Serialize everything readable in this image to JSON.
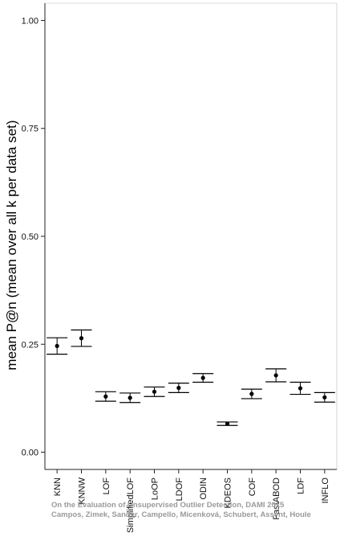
{
  "chart_data": {
    "type": "errorbar",
    "ylabel": "mean P@n (mean over all k per data set)",
    "xlabel": "",
    "ylim": [
      -0.04,
      1.04
    ],
    "yticks": [
      0.0,
      0.25,
      0.5,
      0.75,
      1.0
    ],
    "ytick_labels": [
      "0.00",
      "0.25",
      "0.50",
      "0.75",
      "1.00"
    ],
    "grid": false,
    "categories": [
      "KNN",
      "KNNW",
      "LOF",
      "SimplifiedLOF",
      "LoOP",
      "LDOF",
      "ODIN",
      "KDEOS",
      "COF",
      "FastABOD",
      "LDF",
      "INFLO"
    ],
    "points": [
      {
        "x": "KNN",
        "mean": 0.246,
        "lower": 0.227,
        "upper": 0.265
      },
      {
        "x": "KNNW",
        "mean": 0.264,
        "lower": 0.245,
        "upper": 0.283
      },
      {
        "x": "LOF",
        "mean": 0.129,
        "lower": 0.118,
        "upper": 0.14
      },
      {
        "x": "SimplifiedLOF",
        "mean": 0.126,
        "lower": 0.115,
        "upper": 0.137
      },
      {
        "x": "LoOP",
        "mean": 0.14,
        "lower": 0.129,
        "upper": 0.151
      },
      {
        "x": "LDOF",
        "mean": 0.149,
        "lower": 0.138,
        "upper": 0.16
      },
      {
        "x": "ODIN",
        "mean": 0.172,
        "lower": 0.162,
        "upper": 0.182
      },
      {
        "x": "KDEOS",
        "mean": 0.066,
        "lower": 0.062,
        "upper": 0.07
      },
      {
        "x": "COF",
        "mean": 0.135,
        "lower": 0.124,
        "upper": 0.146
      },
      {
        "x": "FastABOD",
        "mean": 0.178,
        "lower": 0.163,
        "upper": 0.193
      },
      {
        "x": "LDF",
        "mean": 0.148,
        "lower": 0.134,
        "upper": 0.162
      },
      {
        "x": "INFLO",
        "mean": 0.127,
        "lower": 0.116,
        "upper": 0.138
      }
    ]
  },
  "watermark": {
    "line1": "On the Evaluation of Unsupervised Outlier Detection, DAMI 2015",
    "line2": "Campos, Zimek, Sander, Campello, Micenková, Schubert, Assent, Houle"
  },
  "colors": {
    "axis": "#222222",
    "marker": "#000000",
    "watermark": "#9a9a9a"
  }
}
